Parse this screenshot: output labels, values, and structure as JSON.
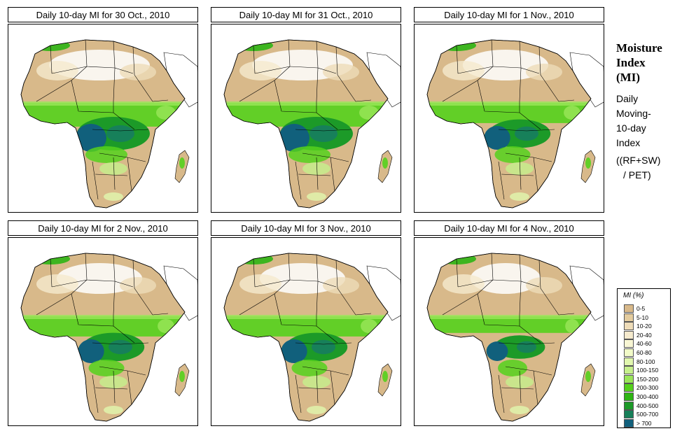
{
  "panels": [
    {
      "title": "Daily 10-day MI for  30 Oct., 2010",
      "wetness": "high"
    },
    {
      "title": "Daily 10-day MI for  31 Oct., 2010",
      "wetness": "high"
    },
    {
      "title": "Daily 10-day MI for  1 Nov., 2010",
      "wetness": "mid"
    },
    {
      "title": "Daily 10-day MI for  2 Nov., 2010",
      "wetness": "mid"
    },
    {
      "title": "Daily 10-day MI for  3 Nov., 2010",
      "wetness": "mid"
    },
    {
      "title": "Daily 10-day MI for  4 Nov., 2010",
      "wetness": "low"
    }
  ],
  "sidebar": {
    "title_lines": [
      "Moisture",
      "Index",
      "(MI)"
    ],
    "desc_lines": [
      "Daily",
      "Moving-",
      "10-day",
      "Index"
    ],
    "formula_lines": [
      "((RF+SW)",
      "/ PET)"
    ]
  },
  "legend": {
    "title": "MI (%)",
    "items": [
      {
        "label": "0-5",
        "color": "#d8b98a"
      },
      {
        "label": "5-10",
        "color": "#e4cc9e"
      },
      {
        "label": "10-20",
        "color": "#eedcb8"
      },
      {
        "label": "20-40",
        "color": "#f5eacd"
      },
      {
        "label": "40-60",
        "color": "#f8f6d4"
      },
      {
        "label": "60-80",
        "color": "#f2fbc8"
      },
      {
        "label": "80-100",
        "color": "#e1f7ae"
      },
      {
        "label": "100-150",
        "color": "#c6f08c"
      },
      {
        "label": "150-200",
        "color": "#9be65a"
      },
      {
        "label": "200-300",
        "color": "#55d11c"
      },
      {
        "label": "300-400",
        "color": "#2eb514"
      },
      {
        "label": "400-500",
        "color": "#1c9a28"
      },
      {
        "label": "500-700",
        "color": "#17805a"
      },
      {
        "label": "> 700",
        "color": "#11607c"
      }
    ]
  },
  "colors": {
    "land_dry": "#d8b98a",
    "desert": "#ffffff",
    "border": "#000000"
  }
}
